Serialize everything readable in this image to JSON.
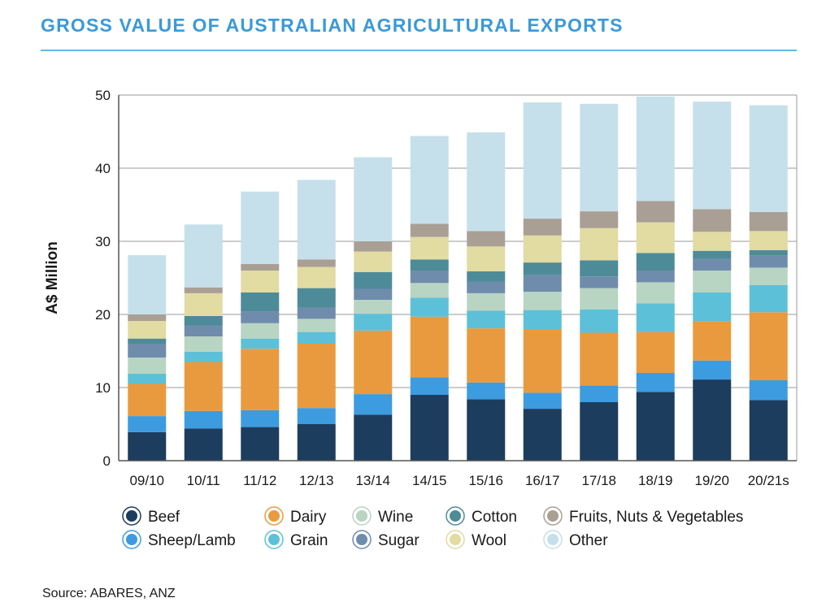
{
  "header": {
    "title": "GROSS VALUE OF AUSTRALIAN AGRICULTURAL EXPORTS"
  },
  "footer": {
    "source": "Source: ABARES, ANZ"
  },
  "chart_data": {
    "type": "bar",
    "stacked": true,
    "title": "GROSS VALUE OF AUSTRALIAN AGRICULTURAL EXPORTS",
    "xlabel": "",
    "ylabel": "A$ Million",
    "ylim": [
      0,
      50
    ],
    "yticks": [
      0,
      10,
      20,
      30,
      40,
      50
    ],
    "grid": true,
    "legend_position": "bottom",
    "categories": [
      "09/10",
      "10/11",
      "11/12",
      "12/13",
      "13/14",
      "14/15",
      "15/16",
      "16/17",
      "17/18",
      "18/19",
      "19/20",
      "20/21s"
    ],
    "series": [
      {
        "name": "Beef",
        "color": "#1c3d5e",
        "values": [
          3.9,
          4.4,
          4.6,
          5.0,
          6.3,
          9.0,
          8.4,
          7.1,
          8.0,
          9.4,
          11.1,
          8.3
        ]
      },
      {
        "name": "Sheep/Lamb",
        "color": "#3d9be0",
        "values": [
          2.2,
          2.4,
          2.3,
          2.2,
          2.8,
          2.4,
          2.3,
          2.2,
          2.3,
          2.6,
          2.6,
          2.7
        ]
      },
      {
        "name": "Dairy",
        "color": "#ea9a3e",
        "values": [
          4.4,
          6.7,
          8.4,
          8.8,
          8.7,
          8.3,
          7.4,
          8.7,
          7.2,
          5.6,
          5.4,
          9.3
        ]
      },
      {
        "name": "Grain",
        "color": "#5cc0d8",
        "values": [
          1.4,
          1.4,
          1.4,
          1.6,
          2.3,
          2.6,
          2.4,
          2.6,
          3.2,
          3.9,
          3.9,
          3.7
        ]
      },
      {
        "name": "Wine",
        "color": "#b8d4c3",
        "values": [
          2.2,
          2.1,
          2.1,
          1.8,
          1.9,
          2.0,
          2.4,
          2.5,
          2.9,
          2.9,
          3.0,
          2.4
        ]
      },
      {
        "name": "Sugar",
        "color": "#6f8cad",
        "values": [
          1.9,
          1.5,
          1.6,
          1.5,
          1.5,
          1.7,
          1.6,
          2.3,
          1.6,
          1.6,
          1.6,
          1.7
        ]
      },
      {
        "name": "Cotton",
        "color": "#4e8b98",
        "values": [
          0.7,
          1.3,
          2.6,
          2.7,
          2.3,
          1.5,
          1.4,
          1.7,
          2.2,
          2.4,
          1.1,
          0.7
        ]
      },
      {
        "name": "Wool",
        "color": "#e2dba2",
        "values": [
          2.4,
          3.1,
          3.0,
          2.9,
          2.8,
          3.1,
          3.4,
          3.7,
          4.4,
          4.2,
          2.6,
          2.6
        ]
      },
      {
        "name": "Fruits, Nuts & Vegetables",
        "color": "#aa9f95",
        "values": [
          0.9,
          0.8,
          0.9,
          1.0,
          1.4,
          1.8,
          2.1,
          2.3,
          2.3,
          2.9,
          3.1,
          2.6
        ]
      },
      {
        "name": "Other",
        "color": "#c5e0eb",
        "values": [
          8.1,
          8.6,
          9.9,
          10.9,
          11.5,
          12.0,
          13.5,
          15.9,
          14.7,
          14.3,
          14.7,
          14.6
        ]
      }
    ]
  }
}
